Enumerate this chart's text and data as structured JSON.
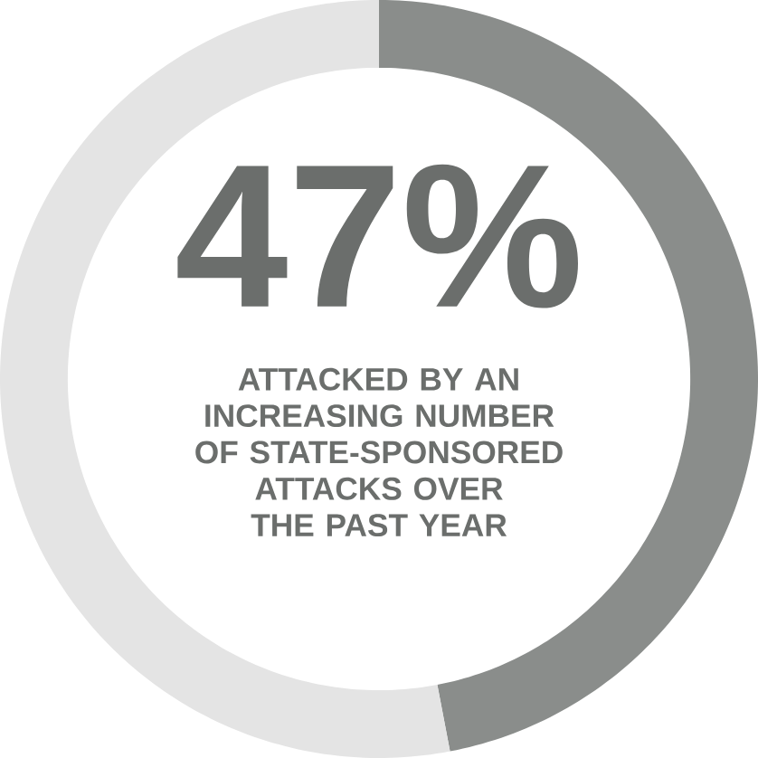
{
  "chart_data": {
    "type": "donut",
    "categories": [
      null,
      null
    ],
    "values": [
      47,
      53
    ],
    "colors": [
      "#8a8d8b",
      "#e4e4e4"
    ],
    "value_labels": [
      "47%",
      null
    ],
    "annotations": [
      "ATTACKED BY AN INCREASING NUMBER OF STATE-SPONSORED ATTACKS OVER THE PAST YEAR"
    ]
  }
}
